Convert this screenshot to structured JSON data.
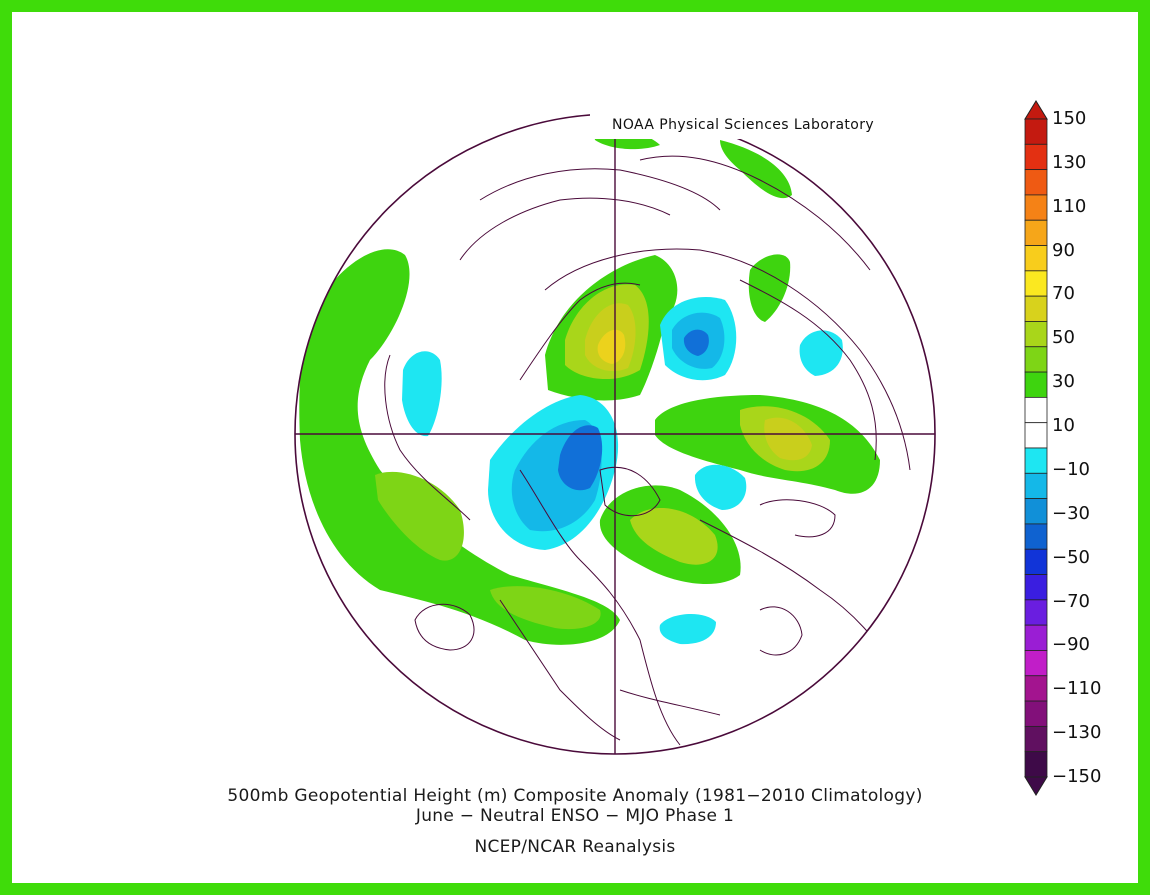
{
  "credit": "NOAA Physical Sciences Laboratory",
  "title": "500mb Geopotential Height (m) Composite Anomaly (1981−2010 Climatology)",
  "subtitle": "June − Neutral ENSO − MJO Phase 1",
  "source": "NCEP/NCAR Reanalysis",
  "colorbar": {
    "labels": [
      "150",
      "130",
      "110",
      "90",
      "70",
      "50",
      "30",
      "10",
      "−10",
      "−30",
      "−50",
      "−70",
      "−90",
      "−110",
      "−130",
      "−150"
    ],
    "colors_top_to_bottom": [
      "#c41a10",
      "#e33012",
      "#ef5a13",
      "#f58216",
      "#f6a619",
      "#f8cd1c",
      "#fbe820",
      "#d8d21c",
      "#a9d61a",
      "#7ed516",
      "#3ed40f",
      "#ffffff",
      "#ffffff",
      "#1ee6f2",
      "#14b8e8",
      "#1190d8",
      "#0f62d0",
      "#1134d8",
      "#3a1ee0",
      "#6a1ee0",
      "#9a1ed4",
      "#c11ec8",
      "#a3148f",
      "#82107a",
      "#601060",
      "#3e0a48"
    ]
  },
  "colors": {
    "frame": "#3fdc0a",
    "coast": "#4a0a3a",
    "pos_light": "#3ed40f",
    "pos_mid": "#7ed516",
    "pos_high": "#c9cf1c",
    "pos_peak": "#ecd21c",
    "neg_light": "#1ee6f2",
    "neg_mid": "#14b8e8",
    "neg_deep": "#1170d8"
  }
}
